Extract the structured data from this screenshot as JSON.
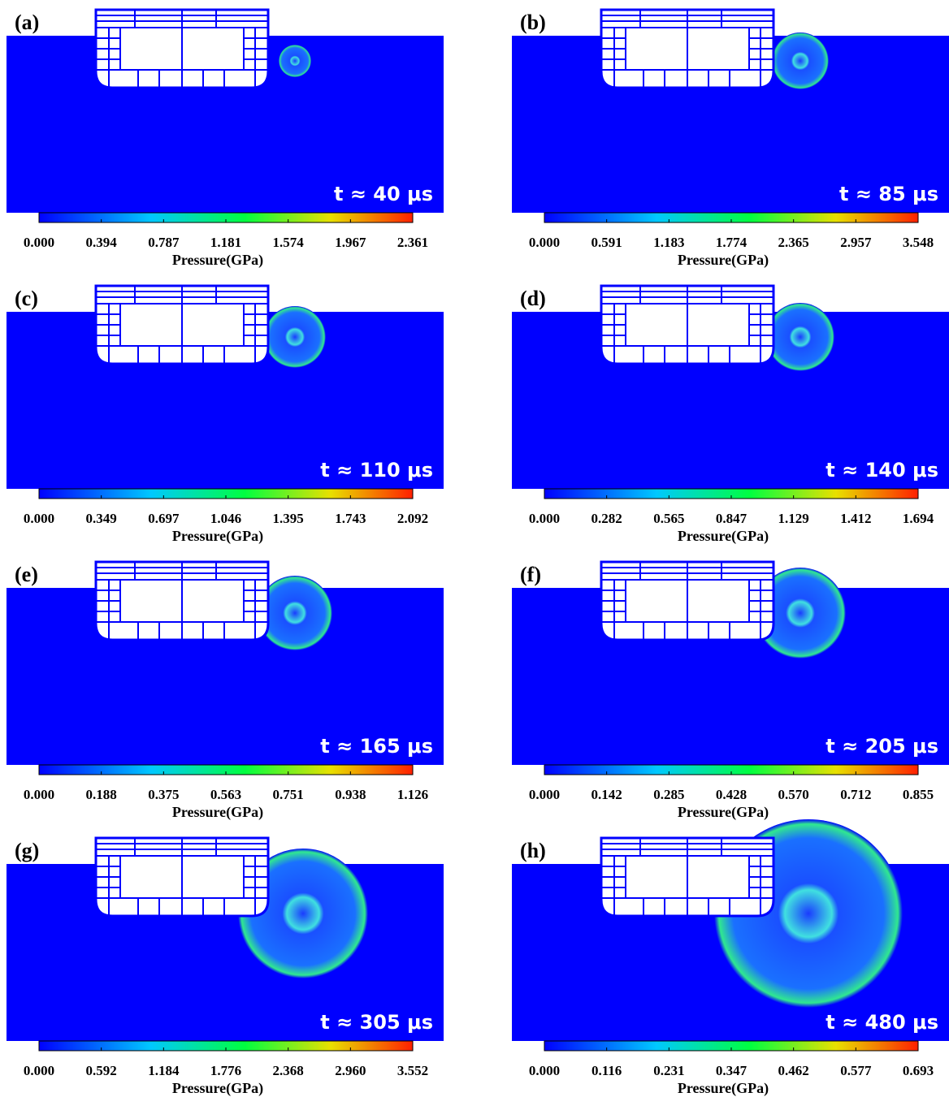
{
  "panels": [
    {
      "label": "(a)",
      "time": "t ≈ 40 μs",
      "ticks": [
        "0.000",
        "0.394",
        "0.787",
        "1.181",
        "1.574",
        "1.967",
        "2.361"
      ],
      "axis_label": "Pressure(GPa)"
    },
    {
      "label": "(b)",
      "time": "t ≈ 85 μs",
      "ticks": [
        "0.000",
        "0.591",
        "1.183",
        "1.774",
        "2.365",
        "2.957",
        "3.548"
      ],
      "axis_label": "Pressure(GPa)"
    },
    {
      "label": "(c)",
      "time": "t ≈ 110 μs",
      "ticks": [
        "0.000",
        "0.349",
        "0.697",
        "1.046",
        "1.395",
        "1.743",
        "2.092"
      ],
      "axis_label": "Pressure(GPa)"
    },
    {
      "label": "(d)",
      "time": "t ≈ 140 μs",
      "ticks": [
        "0.000",
        "0.282",
        "0.565",
        "0.847",
        "1.129",
        "1.412",
        "1.694"
      ],
      "axis_label": "Pressure(GPa)"
    },
    {
      "label": "(e)",
      "time": "t ≈ 165 μs",
      "ticks": [
        "0.000",
        "0.188",
        "0.375",
        "0.563",
        "0.751",
        "0.938",
        "1.126"
      ],
      "axis_label": "Pressure(GPa)"
    },
    {
      "label": "(f)",
      "time": "t ≈ 205 μs",
      "ticks": [
        "0.000",
        "0.142",
        "0.285",
        "0.428",
        "0.570",
        "0.712",
        "0.855"
      ],
      "axis_label": "Pressure(GPa)"
    },
    {
      "label": "(g)",
      "time": "t ≈ 305 μs",
      "ticks": [
        "0.000",
        "0.592",
        "1.184",
        "1.776",
        "2.368",
        "2.960",
        "3.552"
      ],
      "axis_label": "Pressure(GPa)"
    },
    {
      "label": "(h)",
      "time": "t ≈ 480 μs",
      "ticks": [
        "0.000",
        "0.116",
        "0.231",
        "0.347",
        "0.462",
        "0.577",
        "0.693"
      ],
      "axis_label": "Pressure(GPa)"
    }
  ]
}
